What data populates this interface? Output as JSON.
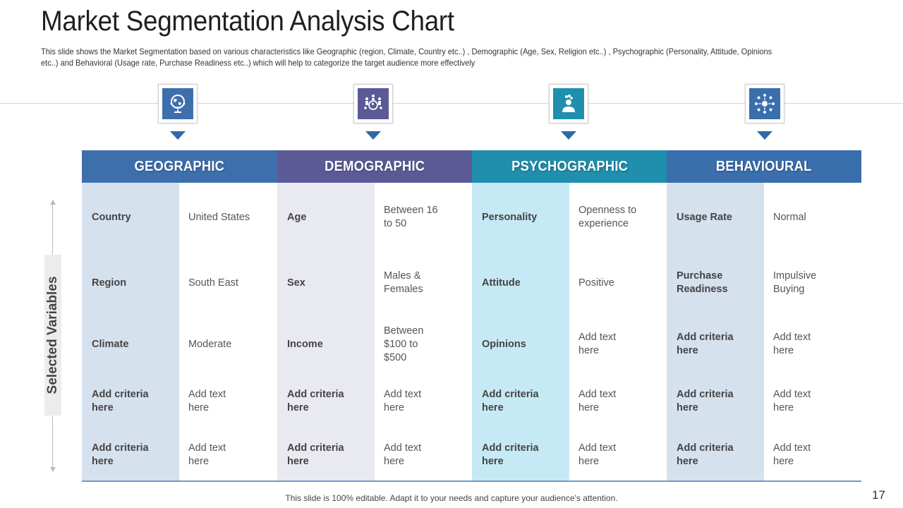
{
  "title": "Market Segmentation Analysis Chart",
  "subtitle": "This slide shows the Market Segmentation based on various characteristics like Geographic (region, Climate, Country etc..) , Demographic (Age, Sex, Religion etc..) , Psychographic (Personality, Attitude, Opinions etc..) and Behavioral (Usage rate, Purchase Readiness etc..) which will help to categorize the target audience more effectively",
  "side_label": "Selected Variables",
  "footer": "This slide is 100% editable. Adapt it to your needs and capture your audience's attention.",
  "page_number": "17",
  "colors": {
    "geographic_header": "#3e6fad",
    "demographic_header": "#5b5a96",
    "psychographic_header": "#1f8fad",
    "behavioural_header": "#3a6eac",
    "geographic_label_bg": "#d6e1ee",
    "demographic_label_bg": "#e9e9f1",
    "psychographic_label_bg": "#c6eaf5",
    "behavioural_label_bg": "#d6e1ee",
    "arrow": "#2e6aa8"
  },
  "segments": [
    {
      "header": "GEOGRAPHIC",
      "icon": "globe-icon",
      "rows": [
        {
          "label": "Country",
          "value": "United States"
        },
        {
          "label": "Region",
          "value": "South East"
        },
        {
          "label": "Climate",
          "value": "Moderate"
        },
        {
          "label": "Add criteria\nhere",
          "value": "Add text\nhere"
        },
        {
          "label": "Add criteria\n here",
          "value": "Add text\nhere"
        }
      ]
    },
    {
      "header": "DEMOGRAPHIC",
      "icon": "people-globe-icon",
      "rows": [
        {
          "label": "Age",
          "value": "Between 16\nto 50"
        },
        {
          "label": "Sex",
          "value": "Males &\nFemales"
        },
        {
          "label": "Income",
          "value": "Between\n$100 to\n$500"
        },
        {
          "label": "Add criteria\nhere",
          "value": "Add text\n here"
        },
        {
          "label": "Add criteria\nhere",
          "value": "Add text\nhere"
        }
      ]
    },
    {
      "header": "PSYCHOGRAPHIC",
      "icon": "person-thinking-icon",
      "rows": [
        {
          "label": "Personality",
          "value": "Openness to\nexperience"
        },
        {
          "label": "Attitude",
          "value": "Positive"
        },
        {
          "label": "Opinions",
          "value": "Add text\nhere"
        },
        {
          "label": "Add criteria\nhere",
          "value": "Add text\nhere"
        },
        {
          "label": "Add criteria\nhere",
          "value": "Add text\nhere"
        }
      ]
    },
    {
      "header": "BEHAVIOURAL",
      "icon": "network-people-icon",
      "rows": [
        {
          "label": "Usage Rate",
          "value": "Normal"
        },
        {
          "label": "Purchase\nReadiness",
          "value": "Impulsive\nBuying"
        },
        {
          "label": "Add criteria\nhere",
          "value": "Add text\nhere"
        },
        {
          "label": "Add criteria\nhere",
          "value": "Add text\nhere"
        },
        {
          "label": "Add criteria\nhere",
          "value": "Add text\nhere"
        }
      ]
    }
  ]
}
